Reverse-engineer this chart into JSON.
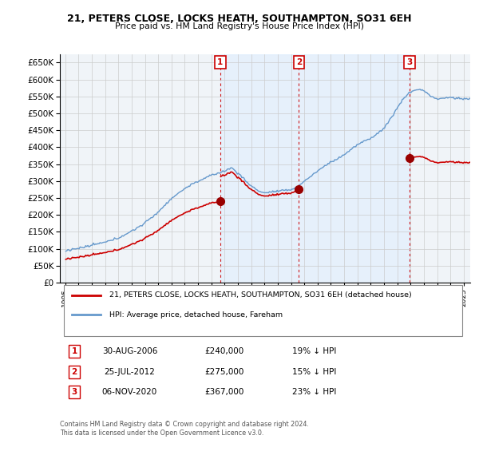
{
  "title": "21, PETERS CLOSE, LOCKS HEATH, SOUTHAMPTON, SO31 6EH",
  "subtitle": "Price paid vs. HM Land Registry's House Price Index (HPI)",
  "legend_line1": "21, PETERS CLOSE, LOCKS HEATH, SOUTHAMPTON, SO31 6EH (detached house)",
  "legend_line2": "HPI: Average price, detached house, Fareham",
  "footer1": "Contains HM Land Registry data © Crown copyright and database right 2024.",
  "footer2": "This data is licensed under the Open Government Licence v3.0.",
  "transactions": [
    {
      "num": "1",
      "date": "30-AUG-2006",
      "price": "£240,000",
      "hpi": "19% ↓ HPI"
    },
    {
      "num": "2",
      "date": "25-JUL-2012",
      "price": "£275,000",
      "hpi": "15% ↓ HPI"
    },
    {
      "num": "3",
      "date": "06-NOV-2020",
      "price": "£367,000",
      "hpi": "23% ↓ HPI"
    }
  ],
  "ylim": [
    0,
    675000
  ],
  "yticks": [
    0,
    50000,
    100000,
    150000,
    200000,
    250000,
    300000,
    350000,
    400000,
    450000,
    500000,
    550000,
    600000,
    650000
  ],
  "line_color_red": "#cc0000",
  "line_color_blue": "#6699cc",
  "fill_color_blue": "#ddeeff",
  "bg_color": "#ffffff",
  "grid_color": "#cccccc",
  "purchase_dot_color": "#990000",
  "vline_color": "#cc0000",
  "num_box_edge": "#cc0000",
  "num_box_face": "#ffffff",
  "num_text_color": "#cc0000"
}
